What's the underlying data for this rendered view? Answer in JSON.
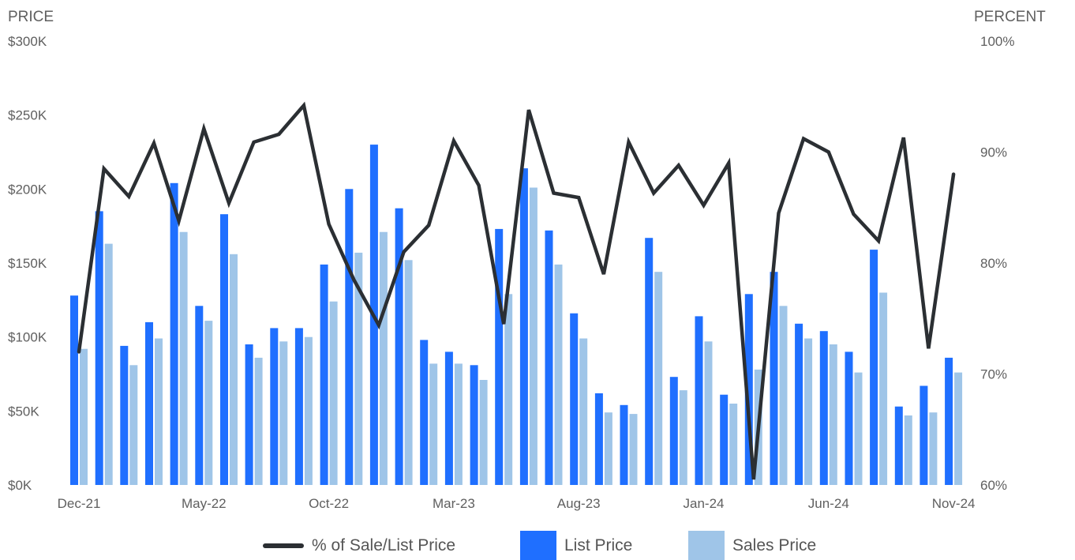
{
  "colors": {
    "list": "#1f6fff",
    "sales": "#9fc5e8",
    "line": "#2b2f33"
  },
  "chart_data": {
    "type": "bar",
    "left_axis_title": "PRICE",
    "right_axis_title": "PERCENT",
    "y_left": {
      "min": 0,
      "max": 300000,
      "ticks": [
        "$0K",
        "$50K",
        "$100K",
        "$150K",
        "$200K",
        "$250K",
        "$300K"
      ]
    },
    "y_right": {
      "min": 60,
      "max": 100,
      "ticks": [
        "60%",
        "70%",
        "80%",
        "90%",
        "100%"
      ]
    },
    "x_tick_labels": [
      "Dec-21",
      "May-22",
      "Oct-22",
      "Mar-23",
      "Aug-23",
      "Jan-24",
      "Jun-24",
      "Nov-24"
    ],
    "categories": [
      "Dec-21",
      "Jan-22",
      "Feb-22",
      "Mar-22",
      "Apr-22",
      "May-22",
      "Jun-22",
      "Jul-22",
      "Aug-22",
      "Sep-22",
      "Oct-22",
      "Nov-22",
      "Dec-22",
      "Jan-23",
      "Feb-23",
      "Mar-23",
      "Apr-23",
      "May-23",
      "Jun-23",
      "Jul-23",
      "Aug-23",
      "Sep-23",
      "Oct-23",
      "Nov-23",
      "Dec-23",
      "Jan-24",
      "Feb-24",
      "Mar-24",
      "Apr-24",
      "May-24",
      "Jun-24",
      "Jul-24",
      "Aug-24",
      "Sep-24",
      "Oct-24",
      "Nov-24"
    ],
    "series": [
      {
        "name": "List Price",
        "kind": "bar",
        "values": [
          128000,
          185000,
          94000,
          110000,
          204000,
          121000,
          183000,
          95000,
          106000,
          106000,
          149000,
          200000,
          230000,
          187000,
          98000,
          90000,
          81000,
          173000,
          214000,
          172000,
          116000,
          62000,
          54000,
          167000,
          73000,
          114000,
          61000,
          129000,
          144000,
          109000,
          104000,
          90000,
          159000,
          53000,
          67000,
          86000
        ]
      },
      {
        "name": "Sales Price",
        "kind": "bar",
        "values": [
          92000,
          163000,
          81000,
          99000,
          171000,
          111000,
          156000,
          86000,
          97000,
          100000,
          124000,
          157000,
          171000,
          152000,
          82000,
          82000,
          71000,
          129000,
          201000,
          149000,
          99000,
          49000,
          48000,
          144000,
          64000,
          97000,
          55000,
          78000,
          121000,
          99000,
          95000,
          76000,
          130000,
          47000,
          49000,
          76000
        ]
      },
      {
        "name": "% of Sale/List Price",
        "kind": "line",
        "axis": "right",
        "values": [
          72.0,
          88.5,
          86.0,
          90.8,
          83.8,
          92.1,
          85.4,
          90.9,
          91.6,
          94.2,
          83.5,
          78.5,
          74.4,
          81.0,
          83.4,
          91.0,
          87.0,
          74.5,
          93.8,
          86.3,
          85.9,
          79.0,
          90.9,
          86.3,
          88.8,
          85.2,
          89.0,
          60.5,
          84.5,
          91.2,
          90.0,
          84.4,
          82.0,
          91.3,
          72.3,
          88.0
        ]
      }
    ],
    "legend_position": "bottom",
    "grid": false
  },
  "legend": [
    {
      "label": "% of Sale/List Price"
    },
    {
      "label": "List Price"
    },
    {
      "label": "Sales Price"
    }
  ]
}
